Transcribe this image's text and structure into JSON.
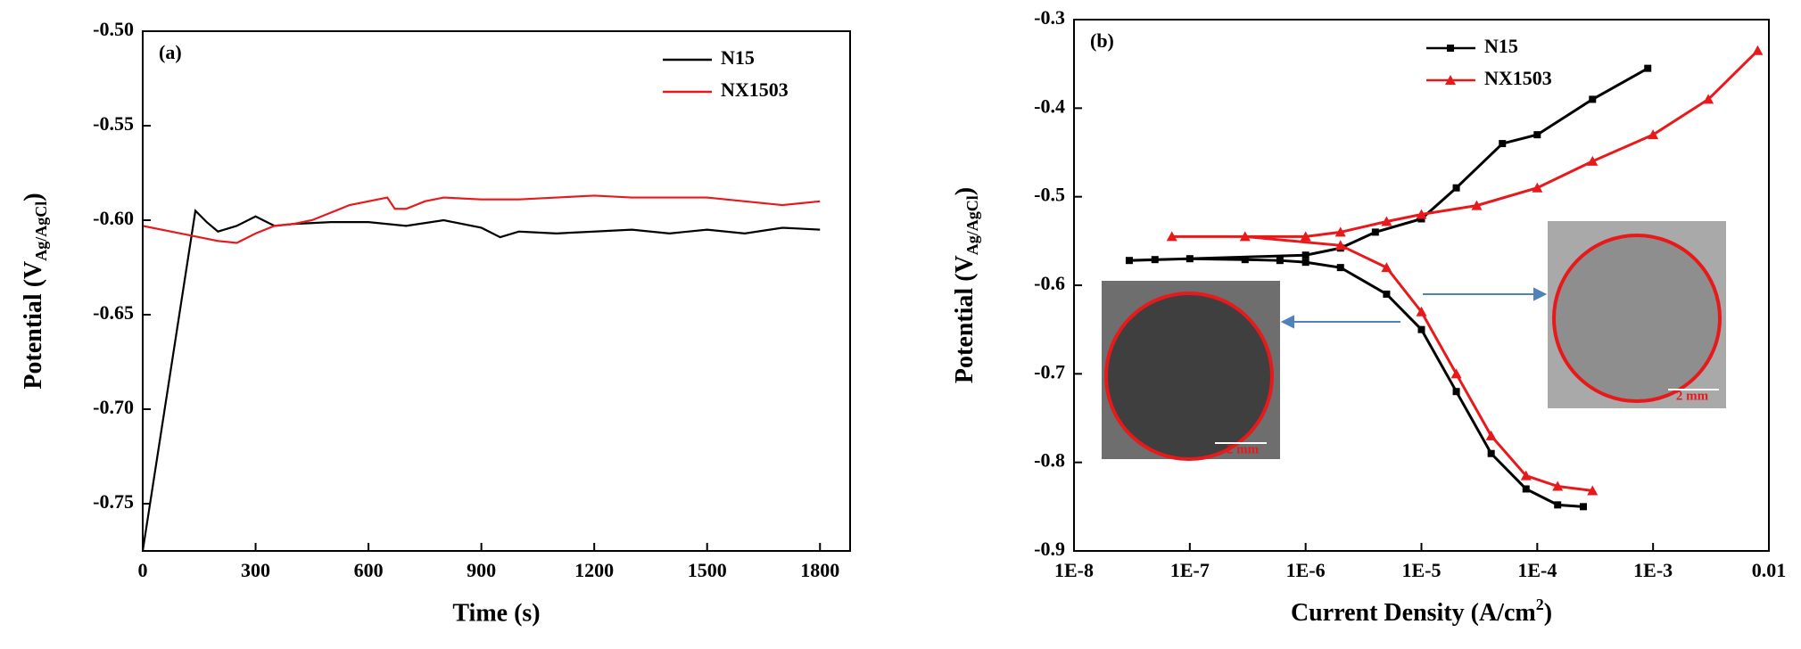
{
  "chart_data": [
    {
      "type": "line",
      "panel_label": "(a)",
      "xlabel": "Time (s)",
      "ylabel": {
        "main": "Potential (V",
        "sub": "Ag/AgCl",
        "end": ")"
      },
      "xlim": [
        0,
        1880
      ],
      "ylim": [
        -0.775,
        -0.5
      ],
      "xticks": [
        0,
        300,
        600,
        900,
        1200,
        1500,
        1800
      ],
      "yticks": [
        {
          "value": -0.5,
          "label": "-0.50"
        },
        -0.55,
        {
          "value": -0.6,
          "label": "-0.60"
        },
        -0.65,
        {
          "value": -0.7,
          "label": "-0.70"
        },
        -0.75
      ],
      "legend": "upper right",
      "series": [
        {
          "name": "N15",
          "color": "#000000",
          "x": [
            0,
            140,
            170,
            200,
            250,
            300,
            350,
            400,
            500,
            600,
            700,
            800,
            900,
            950,
            1000,
            1100,
            1200,
            1300,
            1400,
            1500,
            1600,
            1700,
            1800
          ],
          "values": [
            -0.775,
            -0.595,
            -0.601,
            -0.606,
            -0.603,
            -0.598,
            -0.603,
            -0.602,
            -0.601,
            -0.601,
            -0.603,
            -0.6,
            -0.604,
            -0.609,
            -0.606,
            -0.607,
            -0.606,
            -0.605,
            -0.607,
            -0.605,
            -0.607,
            -0.604,
            -0.605
          ]
        },
        {
          "name": "NX1503",
          "color": "#e8191b",
          "x": [
            0,
            100,
            200,
            250,
            300,
            350,
            400,
            450,
            500,
            550,
            600,
            650,
            670,
            700,
            750,
            800,
            900,
            1000,
            1100,
            1200,
            1300,
            1400,
            1500,
            1600,
            1700,
            1800
          ],
          "values": [
            -0.603,
            -0.607,
            -0.611,
            -0.612,
            -0.607,
            -0.603,
            -0.602,
            -0.6,
            -0.596,
            -0.592,
            -0.59,
            -0.588,
            -0.594,
            -0.594,
            -0.59,
            -0.588,
            -0.589,
            -0.589,
            -0.588,
            -0.587,
            -0.588,
            -0.588,
            -0.588,
            -0.59,
            -0.592,
            -0.59
          ]
        }
      ]
    },
    {
      "type": "line",
      "panel_label": "(b)",
      "xlabel": {
        "main": "Current Density (A/cm",
        "sup": "2",
        "end": ")"
      },
      "ylabel": {
        "main": "Potential (V",
        "sub": "Ag/AgCl",
        "end": ")"
      },
      "xscale": "log",
      "xlim": [
        1e-08,
        0.01
      ],
      "ylim": [
        -0.9,
        -0.3
      ],
      "xticks": [
        {
          "value": 1e-08,
          "label": "1E-8"
        },
        {
          "value": 1e-07,
          "label": "1E-7"
        },
        {
          "value": 1e-06,
          "label": "1E-6"
        },
        {
          "value": 1e-05,
          "label": "1E-5"
        },
        {
          "value": 0.0001,
          "label": "1E-4"
        },
        {
          "value": 0.001,
          "label": "1E-3"
        },
        0.01
      ],
      "yticks": [
        -0.3,
        -0.4,
        -0.5,
        -0.6,
        -0.7,
        -0.8,
        -0.9
      ],
      "legend": "upper left",
      "scale_bar": "2 mm",
      "series": [
        {
          "name": "N15",
          "color": "#000000",
          "marker": "square",
          "x": [
            0.00025,
            0.00015,
            8e-05,
            4e-05,
            2e-05,
            1e-05,
            5e-06,
            2e-06,
            1e-06,
            6e-07,
            3e-07,
            1e-07,
            5e-08,
            3e-08,
            1e-06,
            2e-06,
            4e-06,
            1e-05,
            2e-05,
            5e-05,
            0.0001,
            0.0003,
            0.0009
          ],
          "values": [
            -0.85,
            -0.848,
            -0.83,
            -0.79,
            -0.72,
            -0.65,
            -0.61,
            -0.58,
            -0.574,
            -0.572,
            -0.571,
            -0.57,
            -0.571,
            -0.572,
            -0.566,
            -0.558,
            -0.54,
            -0.525,
            -0.49,
            -0.44,
            -0.43,
            -0.39,
            -0.355
          ]
        },
        {
          "name": "NX1503",
          "color": "#e8191b",
          "marker": "triangle",
          "x": [
            0.0003,
            0.00015,
            8e-05,
            4e-05,
            2e-05,
            1e-05,
            5e-06,
            2e-06,
            3e-07,
            7e-08,
            1e-06,
            2e-06,
            5e-06,
            1e-05,
            3e-05,
            0.0001,
            0.0003,
            0.001,
            0.003,
            0.008
          ],
          "values": [
            -0.832,
            -0.827,
            -0.815,
            -0.77,
            -0.7,
            -0.63,
            -0.58,
            -0.555,
            -0.545,
            -0.545,
            -0.545,
            -0.54,
            -0.528,
            -0.52,
            -0.51,
            -0.49,
            -0.46,
            -0.43,
            -0.39,
            -0.335
          ]
        }
      ]
    }
  ]
}
